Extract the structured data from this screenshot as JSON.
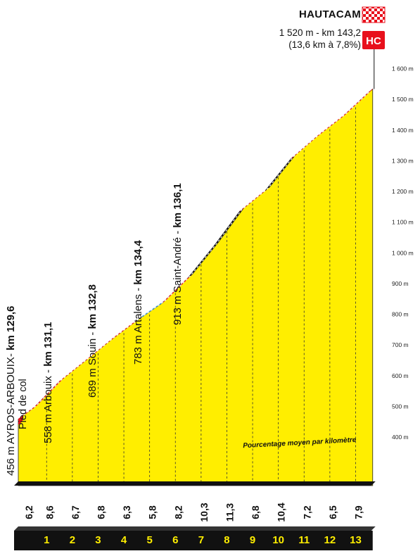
{
  "summit": {
    "name": "HAUTACAM",
    "line1": "1 520 m - km 143,2",
    "line2": "(13,6 km à 7,8%)",
    "category": "HC"
  },
  "waypoints": [
    {
      "prefix": "456 m AYROS-ARBOUIX- ",
      "km": "km 129,6",
      "sub": "Pied de col"
    },
    {
      "prefix": "558 m Arbouix - ",
      "km": "km 131,1",
      "sub": ""
    },
    {
      "prefix": "689 m Souin - ",
      "km": "km 132,8",
      "sub": ""
    },
    {
      "prefix": "783 m Artalens - ",
      "km": "km 134,4",
      "sub": ""
    },
    {
      "prefix": "913 m Saint-André - ",
      "km": "km 136,1",
      "sub": ""
    }
  ],
  "avg_label": "Pourcentage moyen par kilomètre",
  "colors": {
    "fill": "#ffee00",
    "red": "#e8101c",
    "blue": "#2a8fd6",
    "black": "#111111",
    "baseline": "#111111"
  },
  "chart_data": {
    "type": "area",
    "title": "HAUTACAM",
    "xlabel": "",
    "ylabel": "",
    "ylim": [
      320,
      1660
    ],
    "y_tick_labels": [
      "400 m",
      "500 m",
      "600 m",
      "700 m",
      "800 m",
      "900 m",
      "1 000 m",
      "1 100 m",
      "1 200 m",
      "1 300 m",
      "1 400 m",
      "1 500 m",
      "1 600 m"
    ],
    "y_ticks": [
      400,
      500,
      600,
      700,
      800,
      900,
      1000,
      1100,
      1200,
      1300,
      1400,
      1500,
      1600
    ],
    "km_labels": [
      "1",
      "2",
      "3",
      "4",
      "5",
      "6",
      "7",
      "8",
      "9",
      "10",
      "11",
      "12",
      "13"
    ],
    "segment_gradients": [
      "6,2",
      "8,6",
      "6,7",
      "6,8",
      "6,3",
      "5,8",
      "8,2",
      "10,3",
      "11,3",
      "6,8",
      "10,4",
      "7,2",
      "6,5",
      "7,9"
    ],
    "segment_colors": [
      "red",
      "red",
      "red",
      "red",
      "red",
      "blue",
      "red",
      "black",
      "black",
      "red",
      "black",
      "red",
      "red",
      "red"
    ],
    "profile_km": [
      0,
      0.6,
      1.6,
      2.6,
      3.6,
      4.6,
      5.6,
      6.6,
      7.6,
      8.6,
      9.6,
      10.6,
      11.6,
      12.6,
      13.6
    ],
    "profile_alt": [
      456,
      493,
      579,
      646,
      714,
      777,
      835,
      917,
      1020,
      1133,
      1201,
      1305,
      1377,
      1442,
      1520
    ]
  }
}
